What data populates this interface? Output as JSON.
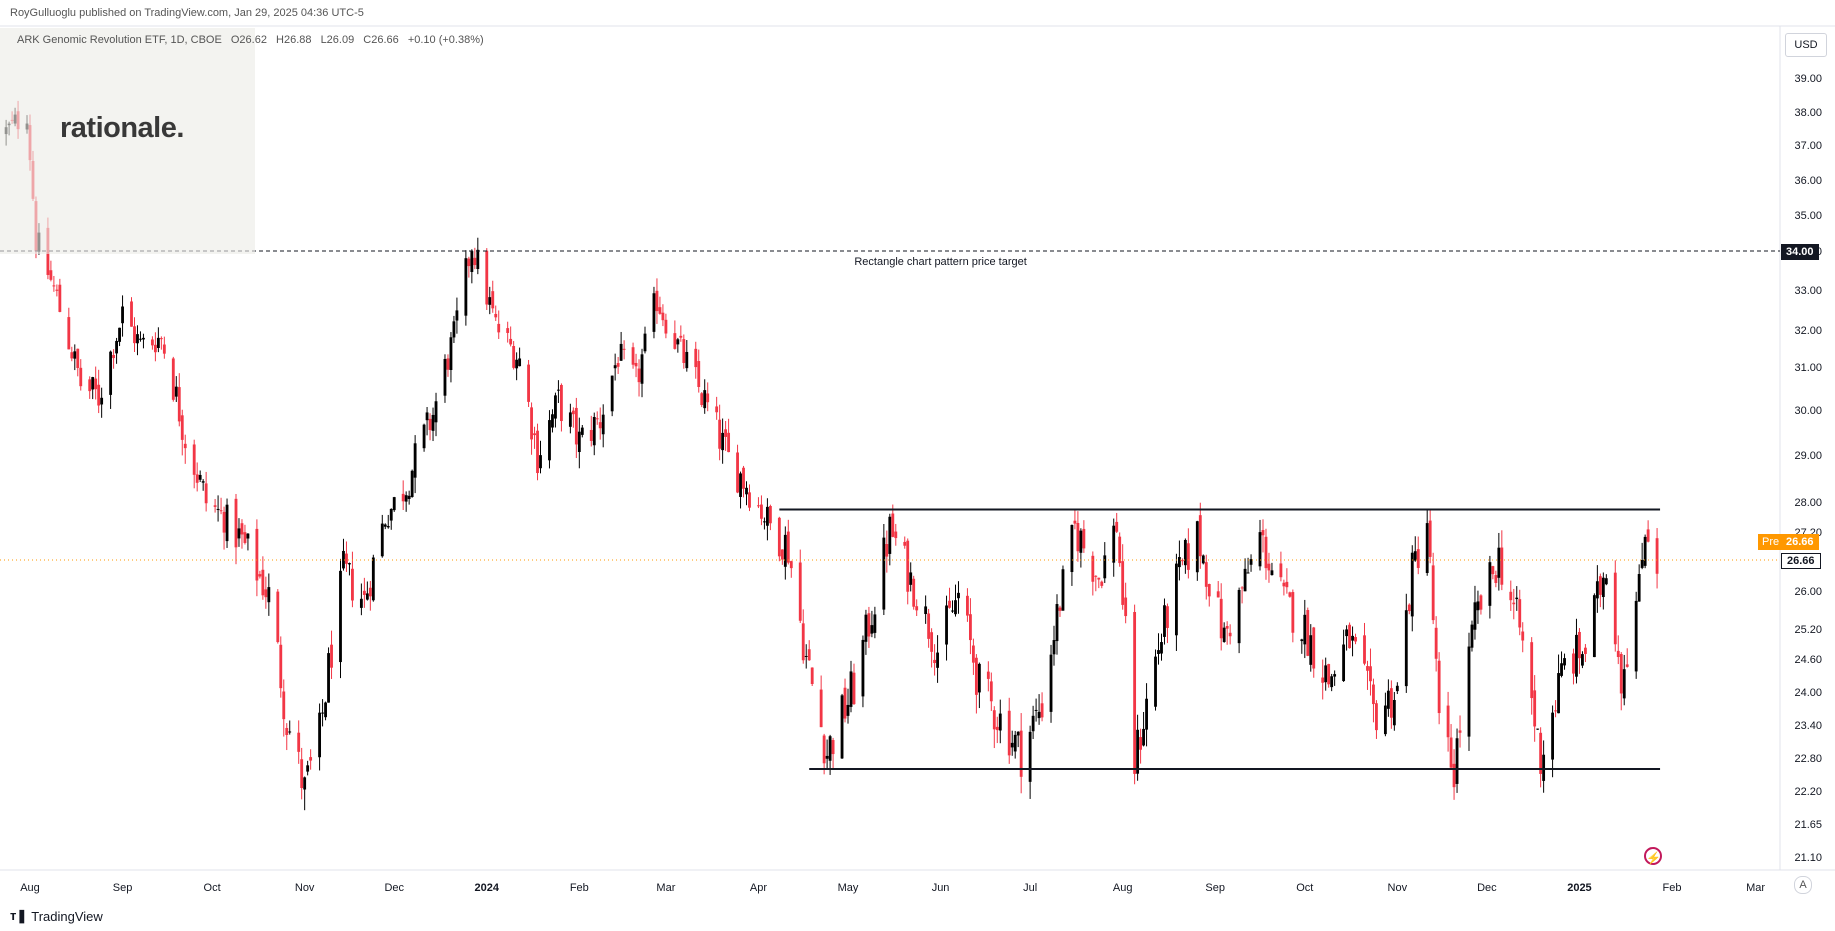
{
  "header": {
    "published_text": "RoyGulluoglu published on TradingView.com, Jan 29, 2025 04:36 UTC-5"
  },
  "legend": {
    "symbol_text": "ARK Genomic Revolution ETF, 1D, CBOE",
    "open": "O26.62",
    "high": "H26.88",
    "low": "L26.09",
    "close": "C26.66",
    "change": "+0.10 (+0.38%)"
  },
  "watermark": {
    "logo_text": "rationale."
  },
  "currency_button": "USD",
  "footer": {
    "brand_text": "TradingView"
  },
  "scale_button": "A",
  "tags": {
    "pre_label": "Pre",
    "pre_price": "26.66",
    "last_price": "26.66",
    "target_price": "34.00"
  },
  "colors": {
    "up": "#000000",
    "down": "#f23645",
    "pre": "#ff9800",
    "dash": "#131722"
  },
  "chart_data": {
    "type": "candlestick",
    "symbol": "ARK Genomic Revolution ETF",
    "interval": "1D",
    "exchange": "CBOE",
    "ohlc_last": {
      "open": 26.62,
      "high": 26.88,
      "low": 26.09,
      "close": 26.66,
      "change": 0.1,
      "change_pct": 0.38
    },
    "ylim": [
      20.6,
      40.0
    ],
    "yticks": [
      "39.00",
      "38.00",
      "37.00",
      "36.00",
      "35.00",
      "34.00",
      "33.00",
      "32.00",
      "31.00",
      "30.00",
      "29.00",
      "28.00",
      "27.20",
      "26.00",
      "25.20",
      "24.60",
      "24.00",
      "23.40",
      "22.80",
      "22.20",
      "21.65",
      "21.10"
    ],
    "x_labels": [
      {
        "label": "Aug",
        "date": "2023-08-01"
      },
      {
        "label": "Sep",
        "date": "2023-09-01"
      },
      {
        "label": "Oct",
        "date": "2023-10-01"
      },
      {
        "label": "Nov",
        "date": "2023-11-01"
      },
      {
        "label": "Dec",
        "date": "2023-12-01"
      },
      {
        "label": "2024",
        "date": "2024-01-01",
        "bold": true
      },
      {
        "label": "Feb",
        "date": "2024-02-01"
      },
      {
        "label": "Mar",
        "date": "2024-03-01"
      },
      {
        "label": "Apr",
        "date": "2024-04-01"
      },
      {
        "label": "May",
        "date": "2024-05-01"
      },
      {
        "label": "Jun",
        "date": "2024-06-01"
      },
      {
        "label": "Jul",
        "date": "2024-07-01"
      },
      {
        "label": "Aug",
        "date": "2024-08-01"
      },
      {
        "label": "Sep",
        "date": "2024-09-01"
      },
      {
        "label": "Oct",
        "date": "2024-10-01"
      },
      {
        "label": "Nov",
        "date": "2024-11-01"
      },
      {
        "label": "Dec",
        "date": "2024-12-01"
      },
      {
        "label": "2025",
        "date": "2025-01-01",
        "bold": true
      },
      {
        "label": "Feb",
        "date": "2025-02-01"
      },
      {
        "label": "Mar",
        "date": "2025-03-01"
      }
    ],
    "price_path": [
      [
        "2023-07-24",
        37.4
      ],
      [
        "2023-07-31",
        38.0
      ],
      [
        "2023-08-03",
        34.3
      ],
      [
        "2023-08-10",
        32.8
      ],
      [
        "2023-08-18",
        30.6
      ],
      [
        "2023-08-24",
        30.3
      ],
      [
        "2023-09-01",
        32.4
      ],
      [
        "2023-09-07",
        31.6
      ],
      [
        "2023-09-14",
        31.8
      ],
      [
        "2023-09-22",
        29.4
      ],
      [
        "2023-09-29",
        28.0
      ],
      [
        "2023-10-05",
        27.6
      ],
      [
        "2023-10-13",
        26.8
      ],
      [
        "2023-10-20",
        25.9
      ],
      [
        "2023-10-26",
        23.5
      ],
      [
        "2023-11-01",
        22.2
      ],
      [
        "2023-11-06",
        23.2
      ],
      [
        "2023-11-10",
        24.8
      ],
      [
        "2023-11-14",
        26.4
      ],
      [
        "2023-11-21",
        25.8
      ],
      [
        "2023-11-28",
        27.6
      ],
      [
        "2023-12-05",
        28.4
      ],
      [
        "2023-12-14",
        29.9
      ],
      [
        "2023-12-21",
        31.8
      ],
      [
        "2023-12-27",
        34.2
      ],
      [
        "2024-01-04",
        32.1
      ],
      [
        "2024-01-12",
        31.2
      ],
      [
        "2024-01-18",
        29.0
      ],
      [
        "2024-01-25",
        30.2
      ],
      [
        "2024-02-01",
        29.3
      ],
      [
        "2024-02-08",
        29.8
      ],
      [
        "2024-02-14",
        31.3
      ],
      [
        "2024-02-20",
        30.6
      ],
      [
        "2024-02-27",
        32.8
      ],
      [
        "2024-03-06",
        31.4
      ],
      [
        "2024-03-14",
        30.2
      ],
      [
        "2024-03-22",
        28.9
      ],
      [
        "2024-03-28",
        28.4
      ],
      [
        "2024-04-05",
        27.4
      ],
      [
        "2024-04-11",
        26.9
      ],
      [
        "2024-04-17",
        24.6
      ],
      [
        "2024-04-24",
        22.9
      ],
      [
        "2024-05-03",
        24.1
      ],
      [
        "2024-05-10",
        25.8
      ],
      [
        "2024-05-15",
        27.3
      ],
      [
        "2024-05-23",
        26.1
      ],
      [
        "2024-05-31",
        24.8
      ],
      [
        "2024-06-07",
        25.9
      ],
      [
        "2024-06-14",
        24.1
      ],
      [
        "2024-06-21",
        23.5
      ],
      [
        "2024-06-28",
        22.9
      ],
      [
        "2024-07-05",
        23.8
      ],
      [
        "2024-07-11",
        25.8
      ],
      [
        "2024-07-16",
        27.3
      ],
      [
        "2024-07-24",
        26.3
      ],
      [
        "2024-07-30",
        27.4
      ],
      [
        "2024-08-05",
        22.7
      ],
      [
        "2024-08-12",
        24.6
      ],
      [
        "2024-08-19",
        26.2
      ],
      [
        "2024-08-26",
        27.2
      ],
      [
        "2024-09-04",
        25.0
      ],
      [
        "2024-09-11",
        26.2
      ],
      [
        "2024-09-16",
        27.1
      ],
      [
        "2024-09-24",
        25.8
      ],
      [
        "2024-10-01",
        25.2
      ],
      [
        "2024-10-09",
        24.2
      ],
      [
        "2024-10-16",
        25.0
      ],
      [
        "2024-10-24",
        23.6
      ],
      [
        "2024-11-01",
        24.0
      ],
      [
        "2024-11-06",
        26.4
      ],
      [
        "2024-11-11",
        27.5
      ],
      [
        "2024-11-15",
        23.3
      ],
      [
        "2024-11-20",
        22.6
      ],
      [
        "2024-11-27",
        25.4
      ],
      [
        "2024-12-05",
        26.7
      ],
      [
        "2024-12-12",
        25.2
      ],
      [
        "2024-12-19",
        22.8
      ],
      [
        "2024-12-27",
        24.5
      ],
      [
        "2025-01-03",
        24.8
      ],
      [
        "2025-01-10",
        26.6
      ],
      [
        "2025-01-15",
        24.3
      ],
      [
        "2025-01-21",
        26.0
      ],
      [
        "2025-01-23",
        27.4
      ],
      [
        "2025-01-27",
        26.66
      ]
    ],
    "annotations": [
      {
        "type": "hline",
        "style": "dashed",
        "price": 34.0,
        "label": "Rectangle chart pattern price target"
      },
      {
        "type": "segment",
        "from": [
          "2024-04-08",
          27.8
        ],
        "to": [
          "2025-01-28",
          27.8
        ]
      },
      {
        "type": "segment",
        "from": [
          "2024-04-18",
          22.6
        ],
        "to": [
          "2025-01-28",
          22.6
        ]
      },
      {
        "type": "hline",
        "style": "dotted",
        "price": 26.66,
        "color": "#ff9800"
      }
    ]
  }
}
